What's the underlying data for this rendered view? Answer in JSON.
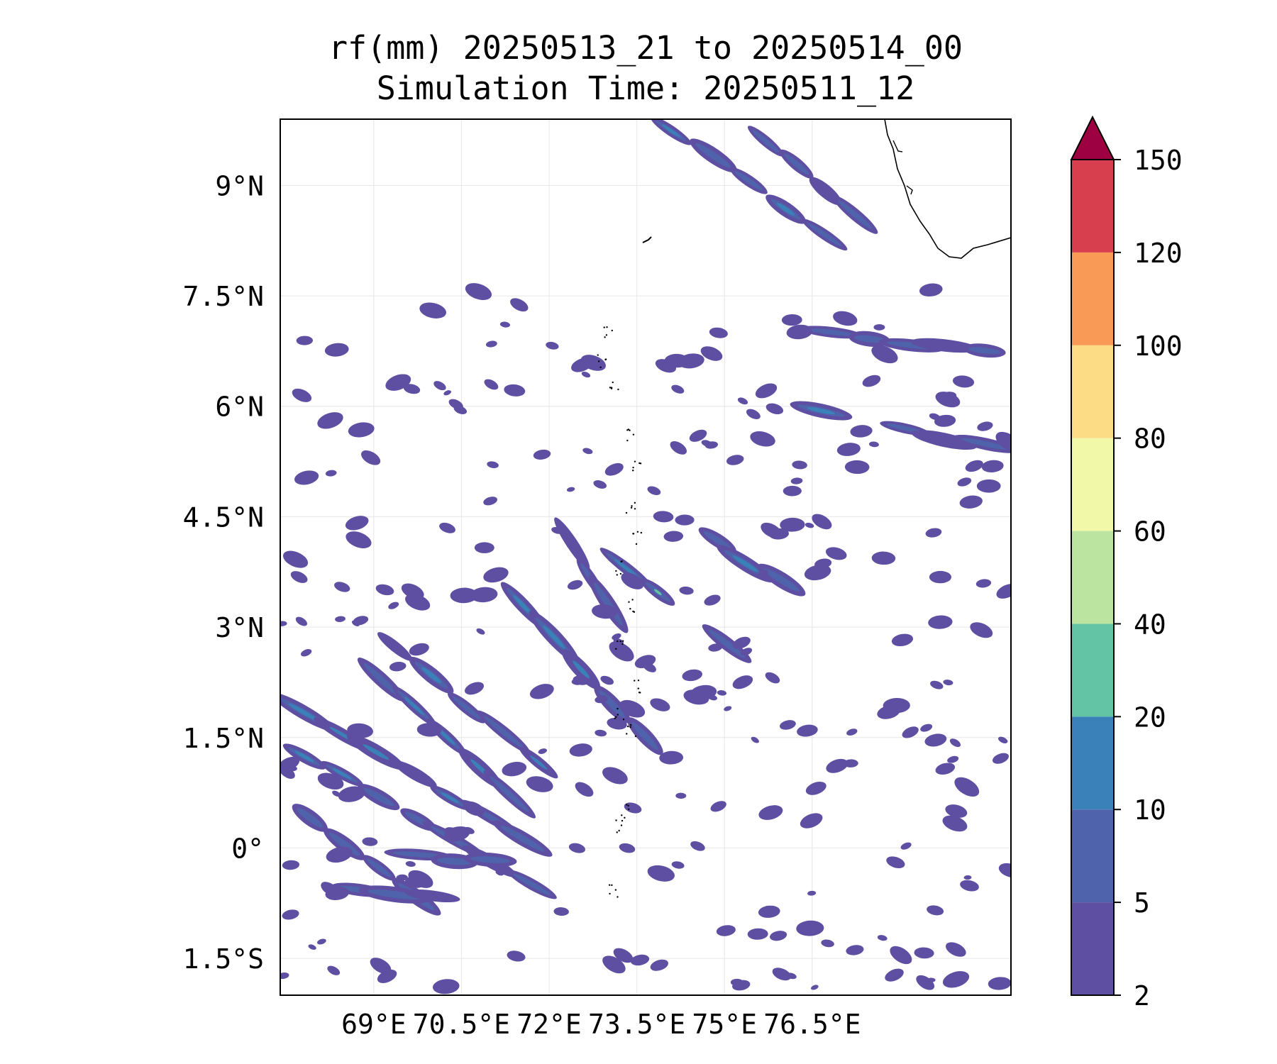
{
  "title": {
    "line1": "rf(mm) 20250513_21 to 20250514_00",
    "line2": "Simulation Time: 20250511_12"
  },
  "map": {
    "lon_range": [
      67.4,
      79.9
    ],
    "lat_range": [
      -2.0,
      9.9
    ],
    "lat_ticks": [
      {
        "value": 9.0,
        "label": "9°N"
      },
      {
        "value": 7.5,
        "label": "7.5°N"
      },
      {
        "value": 6.0,
        "label": "6°N"
      },
      {
        "value": 4.5,
        "label": "4.5°N"
      },
      {
        "value": 3.0,
        "label": "3°N"
      },
      {
        "value": 1.5,
        "label": "1.5°N"
      },
      {
        "value": 0.0,
        "label": "0°"
      },
      {
        "value": -1.5,
        "label": "1.5°S"
      }
    ],
    "lon_ticks": [
      {
        "value": 69.0,
        "label": "69°E"
      },
      {
        "value": 70.5,
        "label": "70.5°E"
      },
      {
        "value": 72.0,
        "label": "72°E"
      },
      {
        "value": 73.5,
        "label": "73.5°E"
      },
      {
        "value": 75.0,
        "label": "75°E"
      },
      {
        "value": 76.5,
        "label": "76.5°E"
      }
    ],
    "grid": true,
    "coastline": "southern tip of India (top-right) and Maldives atolls (center)"
  },
  "colorbar": {
    "levels": [
      2,
      5,
      10,
      20,
      40,
      60,
      80,
      100,
      120,
      150
    ],
    "tick_labels": [
      "2",
      "5",
      "10",
      "20",
      "40",
      "60",
      "80",
      "100",
      "120",
      "150"
    ],
    "colors": [
      "#5e4fa2",
      "#4f63ac",
      "#3a80b9",
      "#63c4a5",
      "#bbe4a0",
      "#f1f9a9",
      "#fddc86",
      "#f99b56",
      "#d73f4f"
    ],
    "extend": "max",
    "extend_color": "#9e0142"
  },
  "chart_data": {
    "type": "heatmap",
    "variable": "rf(mm)",
    "period": "20250513_21 to 20250514_00",
    "simulation_time": "20250511_12",
    "bands": [
      {
        "from": [
          67.5,
          2.0
        ],
        "to": [
          72.5,
          -0.3
        ],
        "max_mm": 20
      },
      {
        "from": [
          67.5,
          1.4
        ],
        "to": [
          72.0,
          -0.6
        ],
        "max_mm": 20
      },
      {
        "from": [
          67.6,
          0.6
        ],
        "to": [
          70.0,
          -0.8
        ],
        "max_mm": 10
      },
      {
        "from": [
          68.3,
          2.9
        ],
        "to": [
          71.6,
          0.5
        ],
        "max_mm": 20
      },
      {
        "from": [
          69.1,
          2.9
        ],
        "to": [
          72.7,
          0.6
        ],
        "max_mm": 20
      },
      {
        "from": [
          71.3,
          3.5
        ],
        "to": [
          74.4,
          0.9
        ],
        "max_mm": 40
      },
      {
        "from": [
          72.2,
          4.3
        ],
        "to": [
          73.2,
          3.1
        ],
        "max_mm": 20
      },
      {
        "from": [
          73.0,
          4.0
        ],
        "to": [
          75.3,
          2.6
        ],
        "max_mm": 40
      },
      {
        "from": [
          74.6,
          4.3
        ],
        "to": [
          76.2,
          3.5
        ],
        "max_mm": 20
      },
      {
        "from": [
          76.3,
          6.0
        ],
        "to": [
          79.8,
          5.4
        ],
        "max_mm": 20
      },
      {
        "from": [
          76.5,
          7.0
        ],
        "to": [
          79.8,
          6.7
        ],
        "max_mm": 10
      },
      {
        "from": [
          73.8,
          9.9
        ],
        "to": [
          77.7,
          7.8
        ],
        "max_mm": 20
      },
      {
        "from": [
          75.4,
          9.8
        ],
        "to": [
          77.5,
          8.4
        ],
        "max_mm": 40
      },
      {
        "from": [
          68.4,
          -0.5
        ],
        "to": [
          70.3,
          -0.7
        ],
        "max_mm": 10
      },
      {
        "from": [
          69.5,
          -0.1
        ],
        "to": [
          71.3,
          -0.2
        ],
        "max_mm": 10
      }
    ]
  }
}
